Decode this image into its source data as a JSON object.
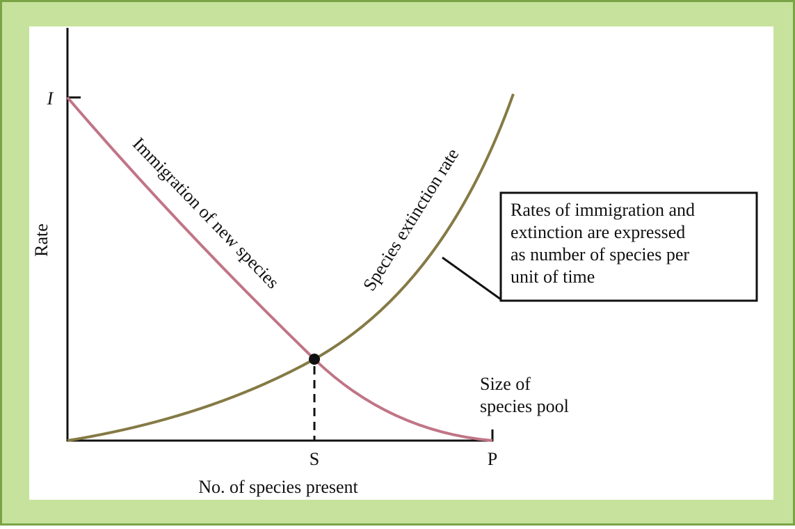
{
  "axes": {
    "y_label": "Rate",
    "y_marker": "I",
    "x_label": "No. of species present",
    "x_marker_s": "S",
    "x_marker_p": "P"
  },
  "curves": {
    "immigration": "Immigration of new species",
    "extinction": "Species extinction rate"
  },
  "pool_label": [
    "Size of",
    "species pool"
  ],
  "callout": [
    "Rates of immigration and",
    "extinction are expressed",
    "as number of species per",
    "unit of time"
  ]
}
